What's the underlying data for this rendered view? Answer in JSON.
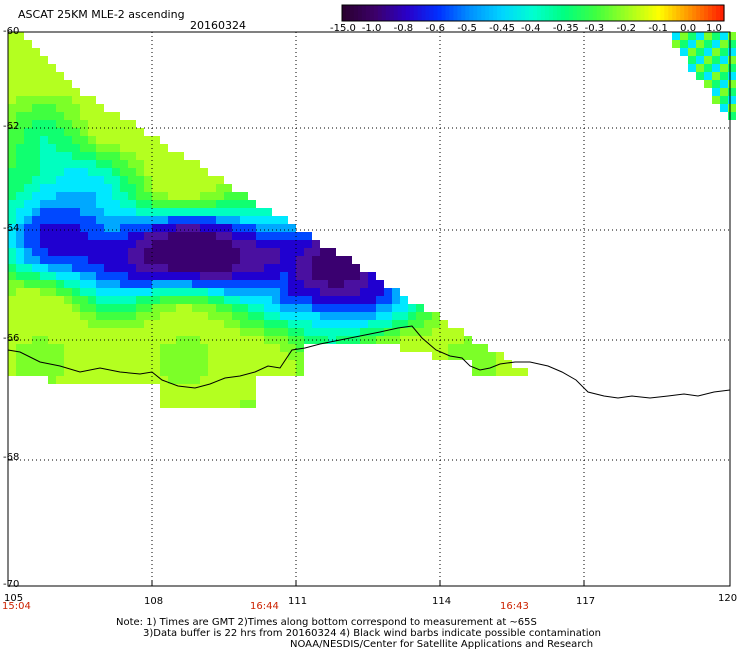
{
  "header": {
    "title": "ASCAT 25KM MLE-2 ascending",
    "date": "20160324"
  },
  "colorbar": {
    "labels": [
      "-15.0",
      "-1.0",
      "-0.8",
      "-0.6",
      "-0.5",
      "-0.45",
      "-0.4",
      "-0.35",
      "-0.3",
      "-0.2",
      "-0.1",
      "0.0",
      "1.0"
    ],
    "colors": [
      "#2a0030",
      "#3c006a",
      "#2a00c8",
      "#0030ff",
      "#0090ff",
      "#00d4ff",
      "#00ffd0",
      "#00ff80",
      "#40ff40",
      "#a0ff20",
      "#ffff00",
      "#ff9000",
      "#ff2000"
    ]
  },
  "axes": {
    "lat_labels": [
      "-60",
      "-62",
      "-64",
      "-66",
      "-68",
      "-70"
    ],
    "lon_labels": [
      "105",
      "108",
      "111",
      "114",
      "117",
      "120"
    ]
  },
  "times": [
    "15:04",
    "16:44",
    "16:43"
  ],
  "notes": {
    "line1": "Note: 1) Times are GMT 2)Times along bottom correspond to measurement at ~65S",
    "line2": "3)Data buffer is 22 hrs from 20160324 4) Black wind barbs indicate possible contamination",
    "line3": "NOAA/NESDIS/Center for Satellite Applications and Research"
  }
}
